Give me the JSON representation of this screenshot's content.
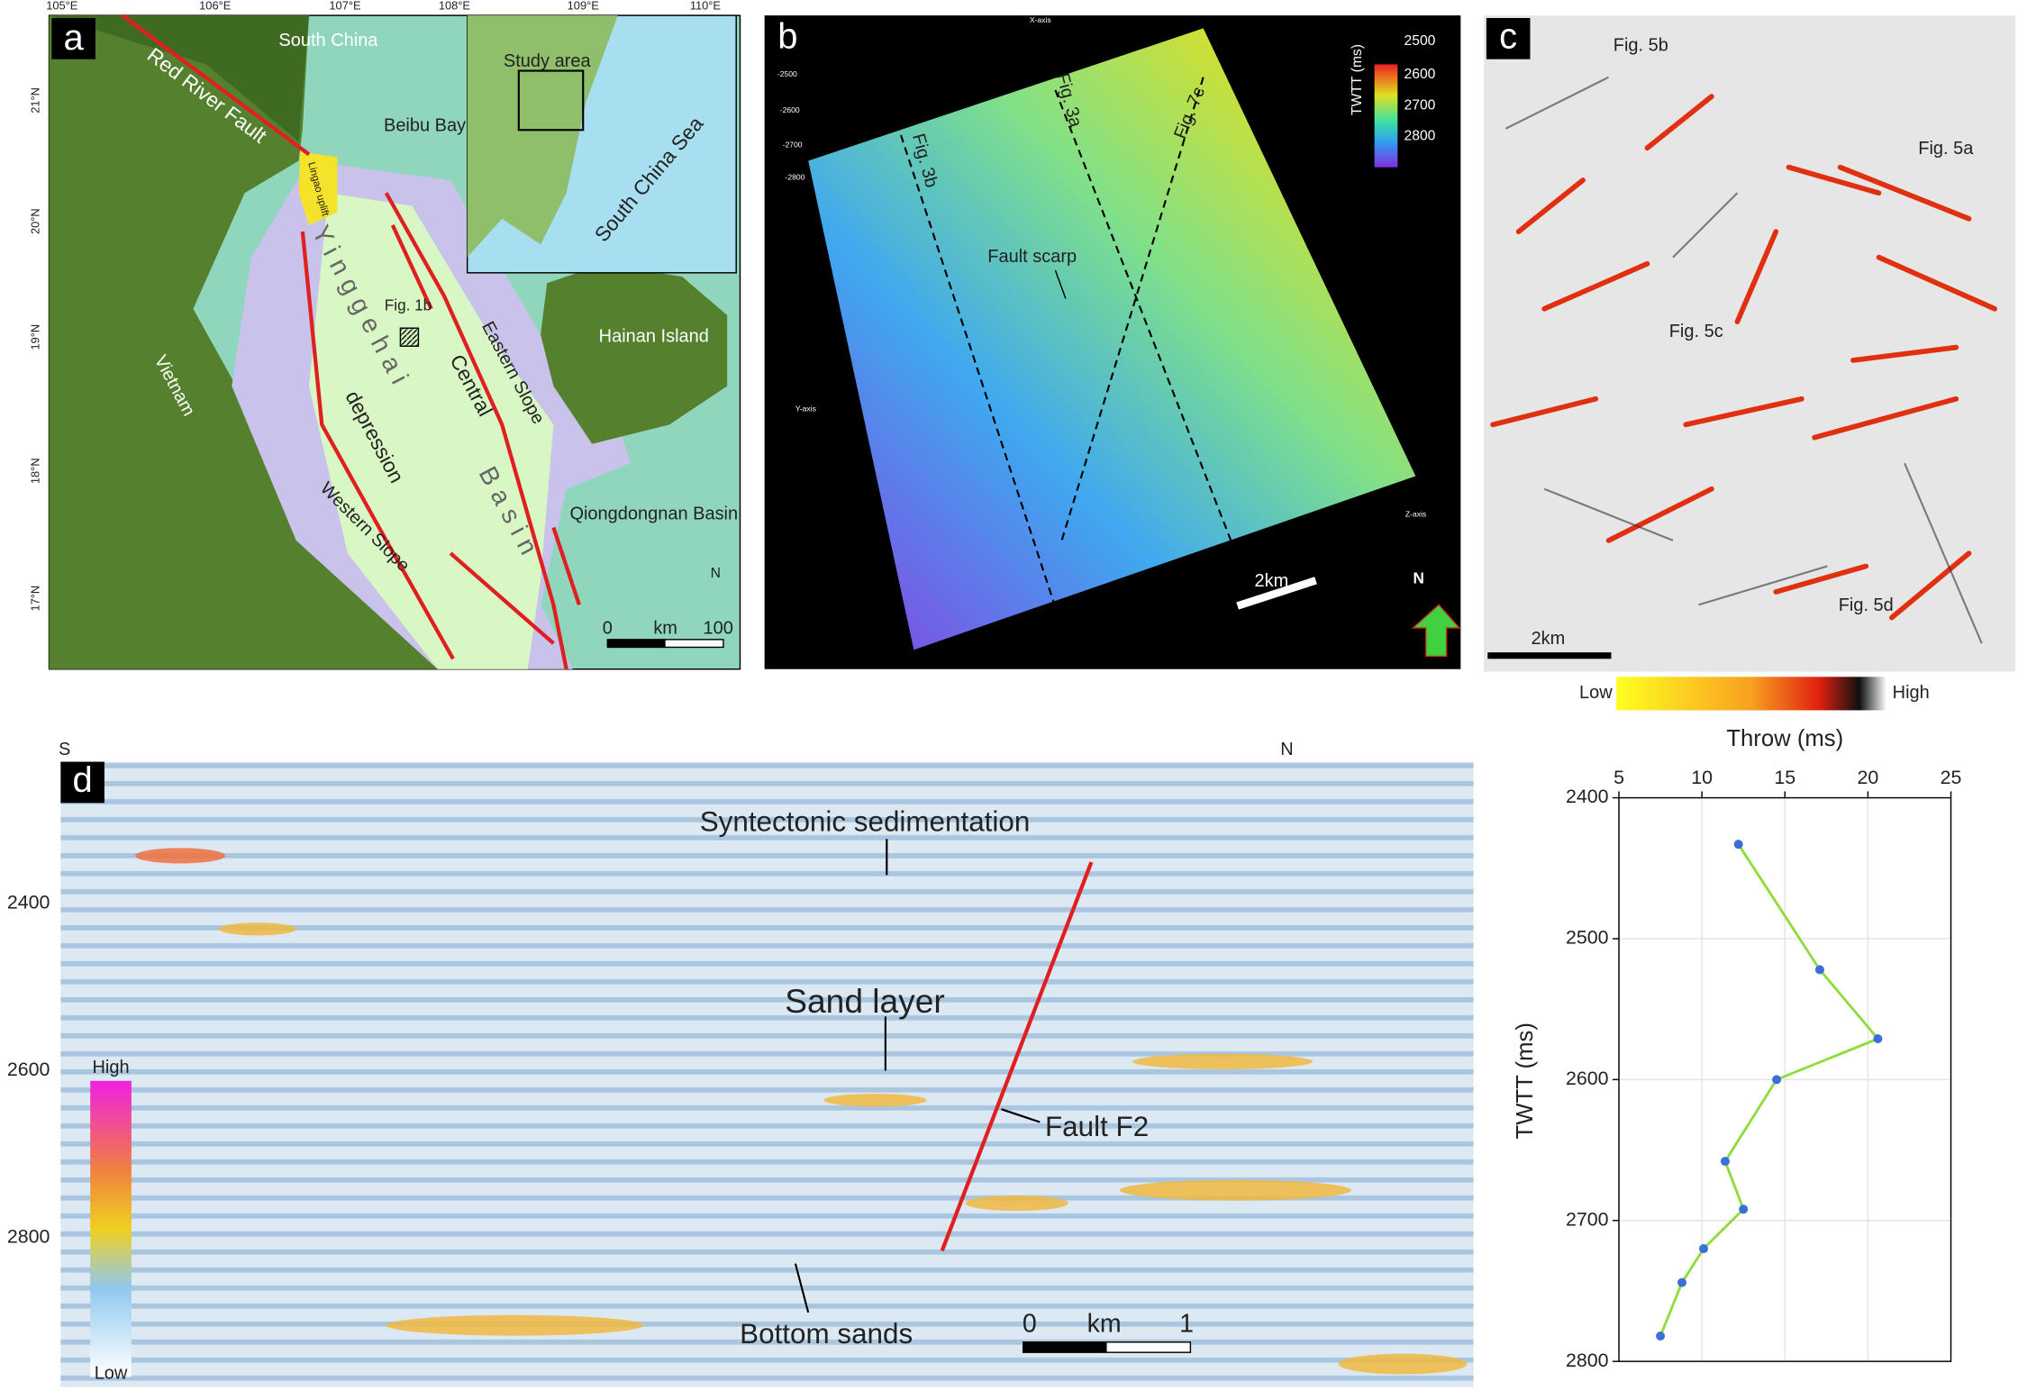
{
  "panel_a": {
    "label": "a",
    "lon_ticks": [
      "105°E",
      "106°E",
      "107°E",
      "108°E",
      "109°E",
      "110°E"
    ],
    "lat_ticks": [
      "21°N",
      "20°N",
      "19°N",
      "18°N",
      "17°N"
    ],
    "texts": [
      "South China",
      "Red River Fault",
      "Beibu Bay",
      "Study area",
      "South China Sea",
      "Lingao uplift",
      "Fig. 1b",
      "Yinggehai",
      "Basin",
      "Central",
      "depression",
      "Eastern Slope",
      "Western Slope",
      "Hainan Island",
      "Vietnam",
      "Qiongdongnan Basin",
      "N"
    ],
    "scale": [
      "0",
      "km",
      "100"
    ]
  },
  "panel_b": {
    "label": "b",
    "lines": [
      "Fig. 3b",
      "Fig. 3a",
      "Fig. 7c"
    ],
    "annotation": "Fault scarp",
    "scale": "2km",
    "colorbar_title": "TWTT (ms)",
    "colorbar_ticks": [
      "2500",
      "2600",
      "2700",
      "2800"
    ],
    "north": "N",
    "axes": [
      "X-axis",
      "Y-axis",
      "Z-axis"
    ],
    "depth_ticks": [
      "-2500",
      "-2600",
      "-2700",
      "-2800"
    ]
  },
  "panel_c": {
    "label": "c",
    "figs": [
      "Fig. 5b",
      "Fig. 5a",
      "Fig. 5c",
      "Fig. 5d"
    ],
    "scale": "2km",
    "colorbar": [
      "Low",
      "High"
    ]
  },
  "panel_d": {
    "label": "d",
    "ends": [
      "S",
      "N"
    ],
    "yticks": [
      "2400",
      "2600",
      "2800"
    ],
    "texts": [
      "Syntectonic sedimentation",
      "Sand layer",
      "Fault F2",
      "Bottom sands"
    ],
    "scale": [
      "0",
      "km",
      "1"
    ],
    "colorbar": [
      "High",
      "Low"
    ]
  },
  "chart_data": {
    "type": "line",
    "x_label": "Throw (ms)",
    "y_label": "TWTT (ms)",
    "x": [
      12.2,
      17.1,
      20.6,
      14.5,
      11.4,
      12.5,
      10.1,
      8.8,
      7.5
    ],
    "values": [
      2433,
      2522,
      2571,
      2600,
      2658,
      2692,
      2720,
      2744,
      2782
    ],
    "xlim": [
      5,
      25
    ],
    "xticks": [
      5,
      10,
      15,
      20,
      25
    ],
    "ylim": [
      2400,
      2800
    ],
    "yticks": [
      2400,
      2500,
      2600,
      2700,
      2800
    ],
    "y_inverted": true,
    "grid": true,
    "line_color": "#8fdc3c",
    "marker_color": "#3a6fd8"
  }
}
